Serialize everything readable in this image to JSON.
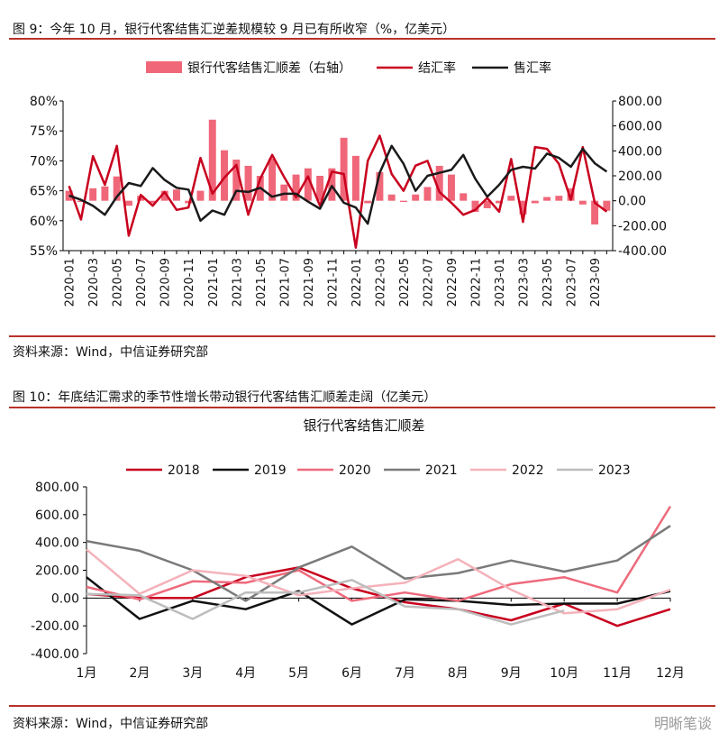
{
  "figure1": {
    "title": "图 9：今年 10 月，银行代客结售汇逆差规模较 9 月已有所收窄（%，亿美元）",
    "source": "资料来源：Wind，中信证券研究部"
  },
  "figure2": {
    "title": "图 10：年底结汇需求的季节性增长带动银行代客结售汇顺差走阔（亿美元）",
    "source": "资料来源：Wind，中信证券研究部"
  },
  "watermark": "明晰笔谈",
  "chart_data": [
    {
      "type": "bar+line",
      "x_dates": [
        "2020-01",
        "2020-02",
        "2020-03",
        "2020-04",
        "2020-05",
        "2020-06",
        "2020-07",
        "2020-08",
        "2020-09",
        "2020-10",
        "2020-11",
        "2020-12",
        "2021-01",
        "2021-02",
        "2021-03",
        "2021-04",
        "2021-05",
        "2021-06",
        "2021-07",
        "2021-08",
        "2021-09",
        "2021-10",
        "2021-11",
        "2021-12",
        "2022-01",
        "2022-02",
        "2022-03",
        "2022-04",
        "2022-05",
        "2022-06",
        "2022-07",
        "2022-08",
        "2022-09",
        "2022-10",
        "2022-11",
        "2022-12",
        "2023-01",
        "2023-02",
        "2023-03",
        "2023-04",
        "2023-05",
        "2023-06",
        "2023-07",
        "2023-08",
        "2023-09",
        "2023-10"
      ],
      "x_tick_labels": [
        "2020-01",
        "2020-03",
        "2020-05",
        "2020-07",
        "2020-09",
        "2020-11",
        "2021-01",
        "2021-03",
        "2021-05",
        "2021-07",
        "2021-09",
        "2021-11",
        "2022-01",
        "2022-03",
        "2022-05",
        "2022-07",
        "2022-09",
        "2022-11",
        "2023-01",
        "2023-03",
        "2023-05",
        "2023-07",
        "2023-09"
      ],
      "y_left": {
        "ticks": [
          "55%",
          "60%",
          "65%",
          "70%",
          "75%",
          "80%"
        ],
        "range": [
          55,
          80
        ]
      },
      "y_right": {
        "ticks": [
          "-400.00",
          "-200.00",
          "0.00",
          "200.00",
          "400.00",
          "600.00",
          "800.00"
        ],
        "range": [
          -400,
          800
        ]
      },
      "legend_position": "top",
      "series": [
        {
          "name": "银行代客结售汇顺差（右轴）",
          "kind": "bar",
          "axis": "right",
          "color": "#f0677a",
          "values": [
            80,
            -10,
            100,
            115,
            195,
            -40,
            40,
            -20,
            80,
            90,
            -20,
            80,
            650,
            405,
            330,
            280,
            200,
            340,
            130,
            210,
            260,
            200,
            260,
            505,
            360,
            -20,
            230,
            50,
            -10,
            50,
            110,
            280,
            210,
            60,
            -90,
            -60,
            -20,
            40,
            -110,
            -20,
            30,
            40,
            100,
            -30,
            -190,
            -80
          ]
        },
        {
          "name": "结汇率",
          "kind": "line",
          "axis": "left",
          "color": "#c8001e",
          "values": [
            65.8,
            60.2,
            70.8,
            66.0,
            72.5,
            57.5,
            64.3,
            62.5,
            64.8,
            61.8,
            62.2,
            70.5,
            64.5,
            67.2,
            69.3,
            61.0,
            67.0,
            71.0,
            67.3,
            63.9,
            67.4,
            62.5,
            68.2,
            67.8,
            55.5,
            70.0,
            74.2,
            67.8,
            65.0,
            69.2,
            70.0,
            64.8,
            63.0,
            61.0,
            61.8,
            63.8,
            61.5,
            70.3,
            59.8,
            72.3,
            72.0,
            69.5,
            63.5,
            72.3,
            63.0,
            61.5
          ]
        },
        {
          "name": "售汇率",
          "kind": "line",
          "axis": "left",
          "color": "#1a1a1a",
          "values": [
            64.2,
            63.5,
            62.5,
            61.0,
            64.0,
            66.3,
            65.8,
            68.8,
            66.8,
            65.5,
            65.2,
            60.0,
            61.7,
            61.0,
            65.0,
            64.8,
            65.5,
            64.0,
            64.5,
            64.5,
            63.2,
            62.0,
            65.8,
            63.0,
            62.2,
            59.5,
            68.0,
            72.5,
            69.5,
            65.0,
            67.5,
            68.0,
            68.5,
            71.0,
            67.0,
            64.0,
            66.0,
            68.5,
            69.0,
            68.7,
            71.2,
            70.5,
            69.0,
            72.0,
            69.6,
            68.2
          ]
        }
      ]
    },
    {
      "type": "line",
      "title": "银行代客结售汇顺差",
      "categories": [
        "1月",
        "2月",
        "3月",
        "4月",
        "5月",
        "6月",
        "7月",
        "8月",
        "9月",
        "10月",
        "11月",
        "12月"
      ],
      "y_ticks": [
        "-400.00",
        "-200.00",
        "0.00",
        "200.00",
        "400.00",
        "600.00",
        "800.00"
      ],
      "ylim": [
        -400,
        800
      ],
      "legend_position": "top",
      "series": [
        {
          "name": "2018",
          "color": "#c8001e",
          "values": [
            30,
            0,
            0,
            150,
            220,
            70,
            -30,
            -80,
            -160,
            -40,
            -200,
            -80
          ]
        },
        {
          "name": "2019",
          "color": "#111111",
          "values": [
            150,
            -150,
            -20,
            -80,
            50,
            -190,
            -10,
            -20,
            -50,
            -40,
            -40,
            50
          ]
        },
        {
          "name": "2020",
          "color": "#ee6a7c",
          "values": [
            80,
            -10,
            120,
            110,
            200,
            -20,
            40,
            -20,
            100,
            150,
            40,
            660
          ]
        },
        {
          "name": "2021",
          "color": "#7a7a7a",
          "values": [
            410,
            340,
            200,
            -20,
            220,
            370,
            140,
            180,
            270,
            190,
            270,
            520
          ]
        },
        {
          "name": "2022",
          "color": "#f4b2ba",
          "values": [
            350,
            30,
            200,
            160,
            20,
            70,
            110,
            280,
            60,
            -110,
            -80,
            60
          ]
        },
        {
          "name": "2023",
          "color": "#bdbdbd",
          "values": [
            30,
            20,
            -150,
            40,
            40,
            130,
            -60,
            -80,
            -190,
            -90,
            null,
            null
          ]
        }
      ]
    }
  ]
}
